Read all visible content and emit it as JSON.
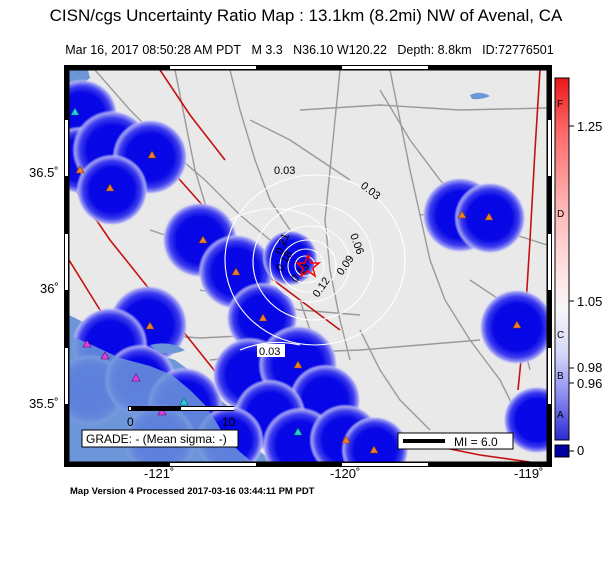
{
  "header": {
    "title": "CISN/cgs Uncertainty Ratio Map : 13.1km (8.2mi) NW of Avenal, CA",
    "subtitle_parts": [
      "Mar 16, 2017 08:50:28 AM PDT",
      "M 3.3",
      "N36.10 W120.22",
      "Depth: 8.8km",
      "ID:72776501"
    ]
  },
  "axes": {
    "x_ticks": [
      "-121˚",
      "-120˚",
      "-119˚"
    ],
    "y_ticks": [
      "36.5˚",
      "36˚",
      "35.5˚"
    ]
  },
  "contours": [
    "0.03",
    "0.03",
    "0.06",
    "0.09",
    "0.12",
    "0.15",
    "0.18",
    "0.21",
    "0.03"
  ],
  "scalebar": {
    "labels": [
      "0",
      "10"
    ]
  },
  "grade_box": {
    "text": "GRADE: - (Mean sigma: -)"
  },
  "magnitude_legend": {
    "text": "MI = 6.0"
  },
  "colorbar": {
    "letters": [
      "F",
      "D",
      "C",
      "B",
      "A"
    ],
    "values": [
      "1.25",
      "1.05",
      "0.98",
      "0.96",
      "0"
    ],
    "colors": {
      "top": "#e8181b",
      "white": "#f4f4f4",
      "bottom": "#2323c8",
      "nodata": "#0000a0"
    }
  },
  "footer": {
    "text": "Map Version 4 Processed 2017-03-16 03:44:11 PM PDT"
  },
  "colors": {
    "land": "#e9e9e9",
    "water": "#6d96d9",
    "station_blob": "#0606e6",
    "fault": "#c41010",
    "road": "#9a9a9a",
    "epicenter": "#ff0000"
  }
}
